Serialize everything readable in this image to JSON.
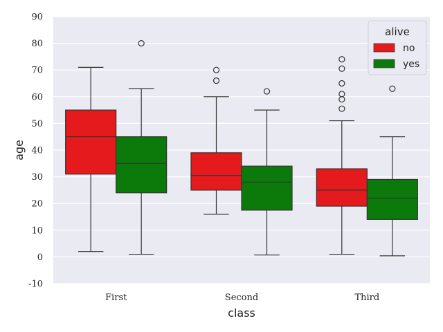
{
  "chart_data": {
    "type": "box",
    "xlabel": "class",
    "ylabel": "age",
    "ylim": [
      -10,
      90
    ],
    "yticks": [
      -10,
      0,
      10,
      20,
      30,
      40,
      50,
      60,
      70,
      80,
      90
    ],
    "categories": [
      "First",
      "Second",
      "Third"
    ],
    "grid": true,
    "background": "#eaeaf2",
    "legend": {
      "title": "alive",
      "placement": "top-right",
      "entries": [
        {
          "label": "no",
          "color": "#e41a1c"
        },
        {
          "label": "yes",
          "color": "#0b7a0b"
        }
      ]
    },
    "series": [
      {
        "name": "no",
        "color": "#e41a1c",
        "boxes": [
          {
            "category": "First",
            "whisker_low": 2,
            "q1": 31,
            "median": 45,
            "q3": 55,
            "whisker_high": 71,
            "outliers": []
          },
          {
            "category": "Second",
            "whisker_low": 16,
            "q1": 25,
            "median": 30.5,
            "q3": 39,
            "whisker_high": 60,
            "outliers": [
              66,
              70
            ]
          },
          {
            "category": "Third",
            "whisker_low": 1,
            "q1": 19,
            "median": 25,
            "q3": 33,
            "whisker_high": 51,
            "outliers": [
              55.5,
              59,
              61,
              65,
              70.5,
              74
            ]
          }
        ]
      },
      {
        "name": "yes",
        "color": "#0b7a0b",
        "boxes": [
          {
            "category": "First",
            "whisker_low": 1,
            "q1": 24,
            "median": 35,
            "q3": 45,
            "whisker_high": 63,
            "outliers": [
              80
            ]
          },
          {
            "category": "Second",
            "whisker_low": 0.7,
            "q1": 17.5,
            "median": 28,
            "q3": 34,
            "whisker_high": 55,
            "outliers": [
              62
            ]
          },
          {
            "category": "Third",
            "whisker_low": 0.4,
            "q1": 14,
            "median": 22,
            "q3": 29,
            "whisker_high": 45,
            "outliers": [
              63
            ]
          }
        ]
      }
    ]
  }
}
